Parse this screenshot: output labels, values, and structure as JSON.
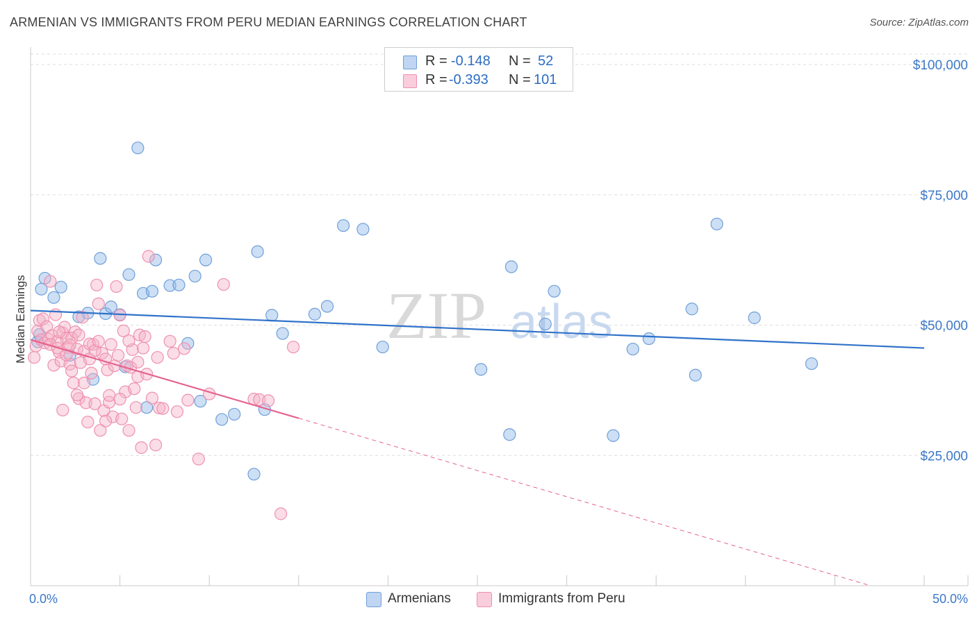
{
  "title": "ARMENIAN VS IMMIGRANTS FROM PERU MEDIAN EARNINGS CORRELATION CHART",
  "source": "Source: ZipAtlas.com",
  "watermark": {
    "zip": "ZIP",
    "atlas": "atlas"
  },
  "legend": {
    "rows": [
      {
        "r_label": "R =",
        "r_value": "-0.148",
        "n_label": "N =",
        "n_value": "52"
      },
      {
        "r_label": "R =",
        "r_value": "-0.393",
        "n_label": "N =",
        "n_value": "101"
      }
    ]
  },
  "chart_data": {
    "type": "scatter",
    "title": "ARMENIAN VS IMMIGRANTS FROM PERU MEDIAN EARNINGS CORRELATION CHART",
    "xlabel": "",
    "ylabel": "Median Earnings",
    "xlim": [
      0,
      0.5
    ],
    "ylim": [
      0,
      102000
    ],
    "x_tick_labels": [
      "0.0%",
      "50.0%"
    ],
    "y_ticks": [
      {
        "value": 25000,
        "label": "$25,000"
      },
      {
        "value": 50000,
        "label": "$50,000"
      },
      {
        "value": 75000,
        "label": "$75,000"
      },
      {
        "value": 100000,
        "label": "$100,000"
      }
    ],
    "series": [
      {
        "name": "Armenians",
        "color": "#8fb8e8",
        "stroke": "#6f9fd8",
        "line_color": "#2f72c9",
        "trend": {
          "x": [
            0.0,
            0.5
          ],
          "y": [
            52800,
            45600
          ],
          "dashed_from": null
        },
        "points": [
          [
            0.004,
            46800
          ],
          [
            0.005,
            48200
          ],
          [
            0.006,
            56900
          ],
          [
            0.008,
            59000
          ],
          [
            0.013,
            55300
          ],
          [
            0.017,
            57300
          ],
          [
            0.022,
            44200
          ],
          [
            0.027,
            51600
          ],
          [
            0.032,
            52300
          ],
          [
            0.035,
            39600
          ],
          [
            0.039,
            62800
          ],
          [
            0.042,
            52200
          ],
          [
            0.045,
            53500
          ],
          [
            0.05,
            52000
          ],
          [
            0.053,
            42000
          ],
          [
            0.055,
            59700
          ],
          [
            0.06,
            84000
          ],
          [
            0.063,
            56100
          ],
          [
            0.065,
            34200
          ],
          [
            0.068,
            56500
          ],
          [
            0.07,
            62500
          ],
          [
            0.078,
            57600
          ],
          [
            0.083,
            57700
          ],
          [
            0.088,
            46500
          ],
          [
            0.092,
            59400
          ],
          [
            0.095,
            35400
          ],
          [
            0.098,
            62500
          ],
          [
            0.107,
            31900
          ],
          [
            0.114,
            32900
          ],
          [
            0.127,
            64100
          ],
          [
            0.131,
            33800
          ],
          [
            0.135,
            51900
          ],
          [
            0.141,
            48400
          ],
          [
            0.159,
            52100
          ],
          [
            0.166,
            53600
          ],
          [
            0.175,
            69100
          ],
          [
            0.186,
            68400
          ],
          [
            0.197,
            45800
          ],
          [
            0.252,
            41500
          ],
          [
            0.268,
            29000
          ],
          [
            0.269,
            61200
          ],
          [
            0.288,
            50200
          ],
          [
            0.293,
            56500
          ],
          [
            0.326,
            28800
          ],
          [
            0.337,
            45400
          ],
          [
            0.346,
            47400
          ],
          [
            0.37,
            53100
          ],
          [
            0.372,
            40400
          ],
          [
            0.384,
            69400
          ],
          [
            0.405,
            51400
          ],
          [
            0.437,
            42600
          ],
          [
            0.125,
            21400
          ]
        ]
      },
      {
        "name": "Immigrants from Peru",
        "color": "#f5b3c8",
        "stroke": "#ee90b0",
        "line_color": "#e5628e",
        "trend": {
          "x": [
            0.0,
            0.47
          ],
          "y": [
            47200,
            0
          ],
          "solid_until": 0.15
        },
        "points": [
          [
            0.002,
            43800
          ],
          [
            0.003,
            46000
          ],
          [
            0.004,
            48900
          ],
          [
            0.005,
            50900
          ],
          [
            0.006,
            47200
          ],
          [
            0.007,
            51200
          ],
          [
            0.008,
            46600
          ],
          [
            0.009,
            49700
          ],
          [
            0.01,
            47300
          ],
          [
            0.011,
            58400
          ],
          [
            0.012,
            48000
          ],
          [
            0.013,
            42300
          ],
          [
            0.014,
            52000
          ],
          [
            0.015,
            46900
          ],
          [
            0.016,
            44800
          ],
          [
            0.017,
            43100
          ],
          [
            0.018,
            48500
          ],
          [
            0.019,
            49600
          ],
          [
            0.02,
            47500
          ],
          [
            0.021,
            45700
          ],
          [
            0.022,
            42500
          ],
          [
            0.023,
            41200
          ],
          [
            0.024,
            38900
          ],
          [
            0.025,
            48700
          ],
          [
            0.026,
            45400
          ],
          [
            0.027,
            35900
          ],
          [
            0.028,
            42800
          ],
          [
            0.029,
            51500
          ],
          [
            0.03,
            45000
          ],
          [
            0.031,
            35100
          ],
          [
            0.032,
            31400
          ],
          [
            0.033,
            43500
          ],
          [
            0.034,
            40800
          ],
          [
            0.035,
            46300
          ],
          [
            0.036,
            34900
          ],
          [
            0.037,
            57700
          ],
          [
            0.038,
            54100
          ],
          [
            0.039,
            29800
          ],
          [
            0.04,
            44600
          ],
          [
            0.041,
            33600
          ],
          [
            0.042,
            43500
          ],
          [
            0.043,
            41400
          ],
          [
            0.044,
            35200
          ],
          [
            0.045,
            46300
          ],
          [
            0.046,
            32400
          ],
          [
            0.047,
            42200
          ],
          [
            0.048,
            57400
          ],
          [
            0.049,
            44200
          ],
          [
            0.05,
            51900
          ],
          [
            0.051,
            32000
          ],
          [
            0.052,
            48900
          ],
          [
            0.053,
            37200
          ],
          [
            0.054,
            42200
          ],
          [
            0.055,
            29800
          ],
          [
            0.056,
            41900
          ],
          [
            0.057,
            45300
          ],
          [
            0.058,
            37800
          ],
          [
            0.059,
            34200
          ],
          [
            0.06,
            40100
          ],
          [
            0.061,
            48100
          ],
          [
            0.062,
            26500
          ],
          [
            0.063,
            45600
          ],
          [
            0.065,
            40600
          ],
          [
            0.066,
            63200
          ],
          [
            0.068,
            36000
          ],
          [
            0.07,
            27000
          ],
          [
            0.071,
            43800
          ],
          [
            0.072,
            34100
          ],
          [
            0.074,
            34000
          ],
          [
            0.078,
            46900
          ],
          [
            0.08,
            44600
          ],
          [
            0.082,
            33400
          ],
          [
            0.086,
            45500
          ],
          [
            0.088,
            35600
          ],
          [
            0.094,
            24300
          ],
          [
            0.1,
            36800
          ],
          [
            0.108,
            57800
          ],
          [
            0.125,
            35800
          ],
          [
            0.128,
            35700
          ],
          [
            0.133,
            35500
          ],
          [
            0.14,
            13800
          ],
          [
            0.147,
            45800
          ],
          [
            0.018,
            33700
          ],
          [
            0.026,
            36600
          ],
          [
            0.033,
            46400
          ],
          [
            0.036,
            45100
          ],
          [
            0.044,
            36500
          ],
          [
            0.011,
            46300
          ],
          [
            0.015,
            45600
          ],
          [
            0.02,
            44300
          ],
          [
            0.023,
            47500
          ],
          [
            0.027,
            48100
          ],
          [
            0.03,
            38900
          ],
          [
            0.042,
            31600
          ],
          [
            0.05,
            35800
          ],
          [
            0.055,
            47000
          ],
          [
            0.06,
            42900
          ],
          [
            0.064,
            47800
          ],
          [
            0.016,
            48700
          ],
          [
            0.022,
            46200
          ],
          [
            0.038,
            46900
          ]
        ]
      }
    ]
  }
}
